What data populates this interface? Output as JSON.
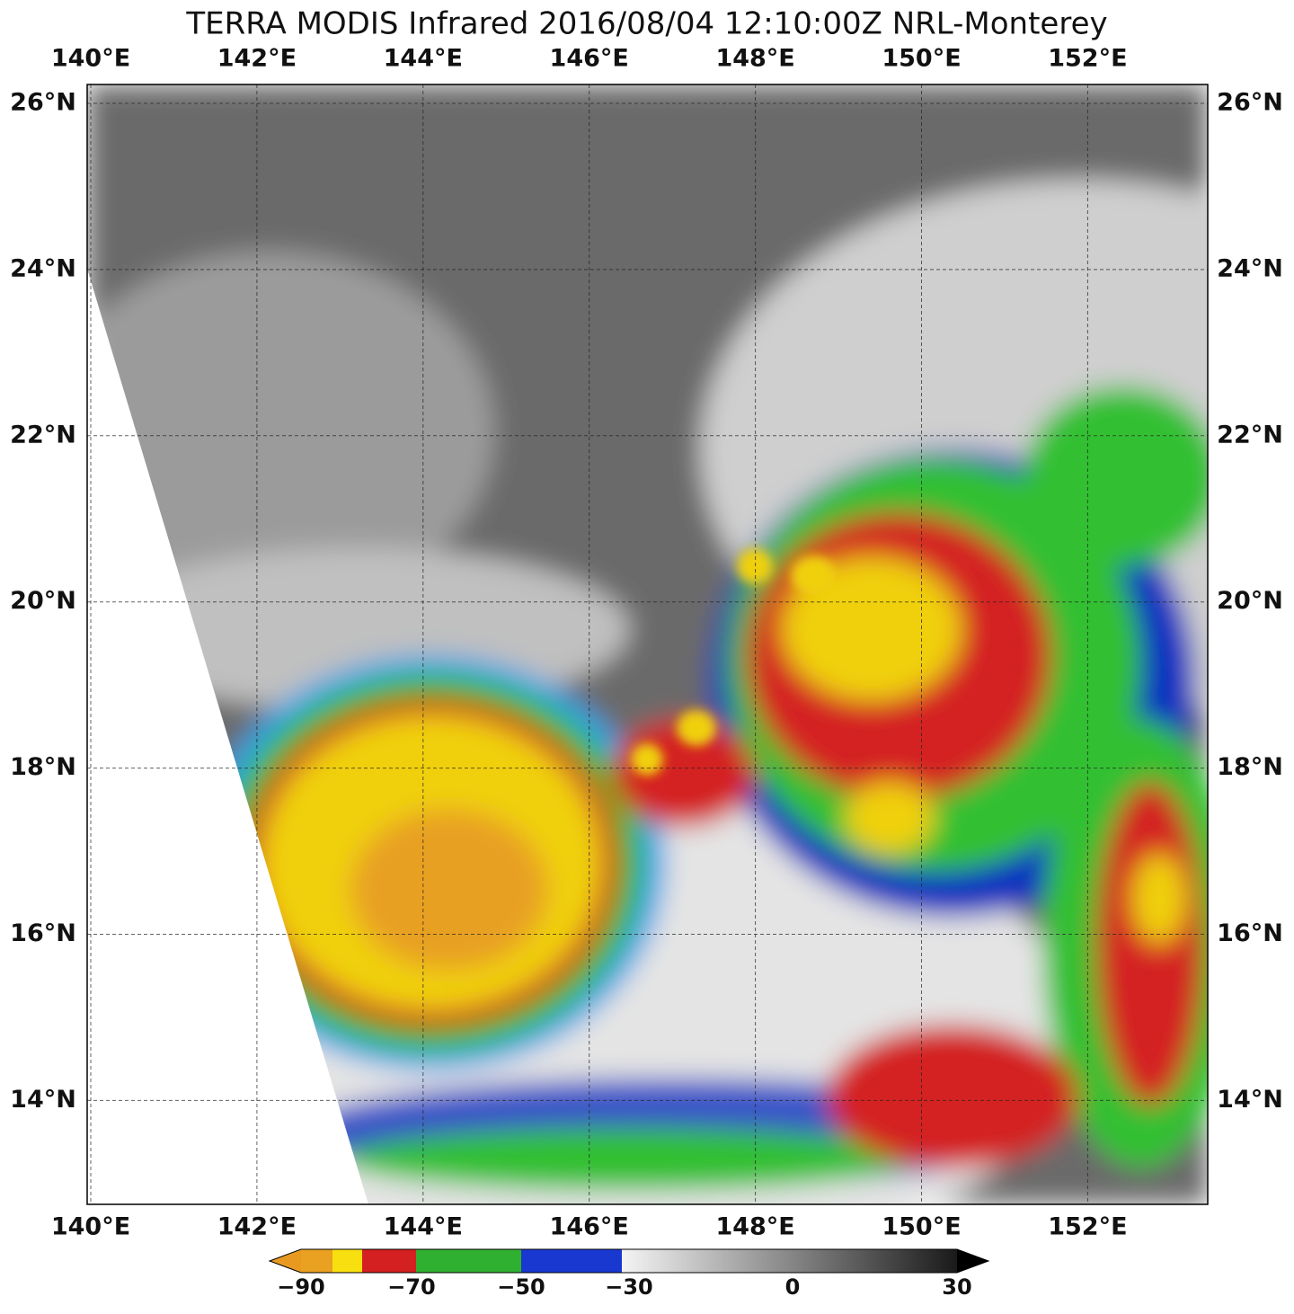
{
  "title": "TERRA MODIS Infrared 2016/08/04 12:10:00Z NRL-Monterey",
  "map": {
    "longitude_labels": [
      "140°E",
      "142°E",
      "144°E",
      "146°E",
      "148°E",
      "150°E",
      "152°E"
    ],
    "latitude_labels": [
      "26°N",
      "24°N",
      "22°N",
      "20°N",
      "18°N",
      "16°N",
      "14°N"
    ]
  },
  "colorbar": {
    "labels": [
      "−90",
      "−70",
      "−50",
      "−30",
      "0",
      "30"
    ]
  }
}
